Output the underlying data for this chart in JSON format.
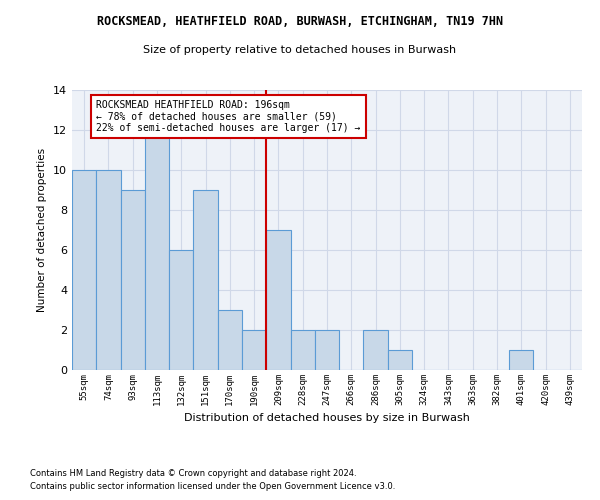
{
  "title": "ROCKSMEAD, HEATHFIELD ROAD, BURWASH, ETCHINGHAM, TN19 7HN",
  "subtitle": "Size of property relative to detached houses in Burwash",
  "xlabel": "Distribution of detached houses by size in Burwash",
  "ylabel": "Number of detached properties",
  "categories": [
    "55sqm",
    "74sqm",
    "93sqm",
    "113sqm",
    "132sqm",
    "151sqm",
    "170sqm",
    "190sqm",
    "209sqm",
    "228sqm",
    "247sqm",
    "266sqm",
    "286sqm",
    "305sqm",
    "324sqm",
    "343sqm",
    "363sqm",
    "382sqm",
    "401sqm",
    "420sqm",
    "439sqm"
  ],
  "values": [
    10,
    10,
    9,
    12,
    6,
    9,
    3,
    2,
    7,
    2,
    2,
    0,
    2,
    1,
    0,
    0,
    0,
    0,
    1,
    0,
    0
  ],
  "bar_color": "#c8d8e8",
  "bar_edge_color": "#5b9bd5",
  "grid_color": "#d0d8e8",
  "background_color": "#eef2f8",
  "vline_x": 7.5,
  "vline_color": "#cc0000",
  "annotation_text": "ROCKSMEAD HEATHFIELD ROAD: 196sqm\n← 78% of detached houses are smaller (59)\n22% of semi-detached houses are larger (17) →",
  "annotation_box_color": "#ffffff",
  "annotation_box_edge_color": "#cc0000",
  "ylim": [
    0,
    14
  ],
  "yticks": [
    0,
    2,
    4,
    6,
    8,
    10,
    12,
    14
  ],
  "footer1": "Contains HM Land Registry data © Crown copyright and database right 2024.",
  "footer2": "Contains public sector information licensed under the Open Government Licence v3.0."
}
